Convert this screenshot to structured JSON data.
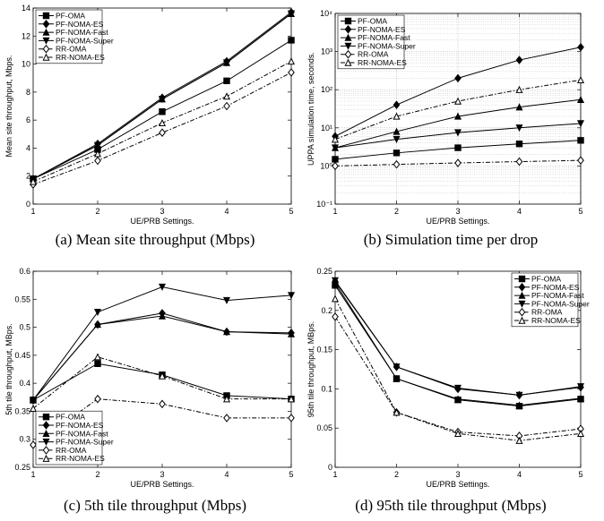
{
  "chart_data": [
    {
      "type": "line",
      "caption": "(a) Mean site throughput (Mbps)",
      "x_label": "UE/PRB Settings.",
      "y_label": "Mean site throughput, Mbps.",
      "x": [
        1,
        2,
        3,
        4,
        5
      ],
      "xlim": [
        1,
        5
      ],
      "xticks": [
        1,
        2,
        3,
        4,
        5
      ],
      "ylim": [
        0,
        14
      ],
      "yticks": [
        0,
        2,
        4,
        6,
        8,
        10,
        12,
        14
      ],
      "grid": false,
      "legend": "upper left",
      "series": [
        {
          "name": "PF-OMA",
          "color": "#000000",
          "marker": "square",
          "linestyle": "solid",
          "values": [
            1.8,
            3.9,
            6.6,
            8.8,
            11.7
          ]
        },
        {
          "name": "PF-NOMA-ES",
          "color": "#000000",
          "marker": "diamond",
          "linestyle": "solid",
          "values": [
            1.8,
            4.3,
            7.6,
            10.2,
            13.7
          ]
        },
        {
          "name": "PF-NOMA-Fast",
          "color": "#000000",
          "marker": "triangle-up",
          "linestyle": "solid",
          "values": [
            1.8,
            4.2,
            7.5,
            10.1,
            13.6
          ]
        },
        {
          "name": "PF-NOMA-Super",
          "color": "#000000",
          "marker": "triangle-down",
          "linestyle": "solid",
          "values": [
            1.8,
            4.2,
            7.5,
            10.1,
            13.6
          ]
        },
        {
          "name": "RR-OMA",
          "color": "#000000",
          "marker": "diamond-open",
          "linestyle": "dashdot",
          "values": [
            1.4,
            3.1,
            5.1,
            7.0,
            9.4
          ]
        },
        {
          "name": "RR-NOMA-ES",
          "color": "#000000",
          "marker": "triangle-open",
          "linestyle": "dashdot",
          "values": [
            1.6,
            3.6,
            5.8,
            7.7,
            10.2
          ]
        }
      ]
    },
    {
      "type": "line",
      "caption": "(b) Simulation time per drop",
      "x_label": "UE/PRB Settings.",
      "y_label": "UPPA simulation time, seconds.",
      "x": [
        1,
        2,
        3,
        4,
        5
      ],
      "xlim": [
        1,
        5
      ],
      "xticks": [
        1,
        2,
        3,
        4,
        5
      ],
      "ylim": [
        0.1,
        10000
      ],
      "log_y": true,
      "yticks": [
        {
          "value": 0.1,
          "label": "10⁻¹"
        },
        {
          "value": 1,
          "label": "10⁰"
        },
        {
          "value": 10,
          "label": "10¹"
        },
        {
          "value": 100,
          "label": "10²"
        },
        {
          "value": 1000,
          "label": "10³"
        },
        {
          "value": 10000,
          "label": "10⁴"
        }
      ],
      "grid": true,
      "legend": "upper left",
      "series": [
        {
          "name": "PF-OMA",
          "color": "#000000",
          "marker": "square",
          "linestyle": "solid",
          "values": [
            1.5,
            2.2,
            3.0,
            3.8,
            4.7
          ]
        },
        {
          "name": "PF-NOMA-ES",
          "color": "#000000",
          "marker": "diamond",
          "linestyle": "solid",
          "values": [
            6,
            40,
            200,
            600,
            1300
          ]
        },
        {
          "name": "PF-NOMA-Fast",
          "color": "#000000",
          "marker": "triangle-up",
          "linestyle": "solid",
          "values": [
            3,
            8,
            20,
            35,
            55
          ]
        },
        {
          "name": "PF-NOMA-Super",
          "color": "#000000",
          "marker": "triangle-down",
          "linestyle": "solid",
          "values": [
            3,
            5,
            7.5,
            10,
            13
          ]
        },
        {
          "name": "RR-OMA",
          "color": "#000000",
          "marker": "diamond-open",
          "linestyle": "dashdot",
          "values": [
            1.0,
            1.1,
            1.2,
            1.3,
            1.4
          ]
        },
        {
          "name": "RR-NOMA-ES",
          "color": "#000000",
          "marker": "triangle-open",
          "linestyle": "dashdot",
          "values": [
            5,
            20,
            50,
            100,
            180
          ]
        }
      ]
    },
    {
      "type": "line",
      "caption": "(c) 5th tile throughput (Mbps)",
      "x_label": "UE/PRB Settings.",
      "y_label": "5th tile throughput, MBps.",
      "x": [
        1,
        2,
        3,
        4,
        5
      ],
      "xlim": [
        1,
        5
      ],
      "xticks": [
        1,
        2,
        3,
        4,
        5
      ],
      "ylim": [
        0.25,
        0.6
      ],
      "yticks": [
        0.25,
        0.3,
        0.35,
        0.4,
        0.45,
        0.5,
        0.55,
        0.6
      ],
      "grid": false,
      "legend": "lower left",
      "series": [
        {
          "name": "PF-OMA",
          "color": "#000000",
          "marker": "square",
          "linestyle": "solid",
          "values": [
            0.37,
            0.435,
            0.415,
            0.378,
            0.372
          ]
        },
        {
          "name": "PF-NOMA-ES",
          "color": "#000000",
          "marker": "diamond",
          "linestyle": "solid",
          "values": [
            0.37,
            0.505,
            0.525,
            0.492,
            0.49
          ]
        },
        {
          "name": "PF-NOMA-Fast",
          "color": "#000000",
          "marker": "triangle-up",
          "linestyle": "solid",
          "values": [
            0.37,
            0.505,
            0.52,
            0.492,
            0.488
          ]
        },
        {
          "name": "PF-NOMA-Super",
          "color": "#000000",
          "marker": "triangle-down",
          "linestyle": "solid",
          "values": [
            0.37,
            0.527,
            0.572,
            0.548,
            0.557
          ]
        },
        {
          "name": "RR-OMA",
          "color": "#000000",
          "marker": "diamond-open",
          "linestyle": "dashdot",
          "values": [
            0.29,
            0.372,
            0.363,
            0.338,
            0.338
          ]
        },
        {
          "name": "RR-NOMA-ES",
          "color": "#000000",
          "marker": "triangle-open",
          "linestyle": "dashdot",
          "values": [
            0.355,
            0.447,
            0.413,
            0.372,
            0.372
          ]
        }
      ]
    },
    {
      "type": "line",
      "caption": "(d) 95th tile throughput (Mbps)",
      "x_label": "UE/PRB Settings.",
      "y_label": "95th tile throughput, MBps.",
      "x": [
        1,
        2,
        3,
        4,
        5
      ],
      "xlim": [
        1,
        5
      ],
      "xticks": [
        1,
        2,
        3,
        4,
        5
      ],
      "ylim": [
        0,
        0.25
      ],
      "yticks": [
        0,
        0.05,
        0.1,
        0.15,
        0.2,
        0.25
      ],
      "grid": false,
      "legend": "upper right",
      "series": [
        {
          "name": "PF-OMA",
          "color": "#000000",
          "marker": "square",
          "linestyle": "solid",
          "values": [
            0.232,
            0.113,
            0.086,
            0.078,
            0.087
          ]
        },
        {
          "name": "PF-NOMA-ES",
          "color": "#000000",
          "marker": "diamond",
          "linestyle": "solid",
          "values": [
            0.237,
            0.128,
            0.1,
            0.092,
            0.102
          ]
        },
        {
          "name": "PF-NOMA-Fast",
          "color": "#000000",
          "marker": "triangle-up",
          "linestyle": "solid",
          "values": [
            0.235,
            0.113,
            0.087,
            0.079,
            0.088
          ]
        },
        {
          "name": "PF-NOMA-Super",
          "color": "#000000",
          "marker": "triangle-down",
          "linestyle": "solid",
          "values": [
            0.238,
            0.128,
            0.101,
            0.092,
            0.103
          ]
        },
        {
          "name": "RR-OMA",
          "color": "#000000",
          "marker": "diamond-open",
          "linestyle": "dashdot",
          "values": [
            0.192,
            0.07,
            0.045,
            0.04,
            0.049
          ]
        },
        {
          "name": "RR-NOMA-ES",
          "color": "#000000",
          "marker": "triangle-open",
          "linestyle": "dashdot",
          "values": [
            0.215,
            0.07,
            0.043,
            0.034,
            0.043
          ]
        }
      ]
    }
  ]
}
